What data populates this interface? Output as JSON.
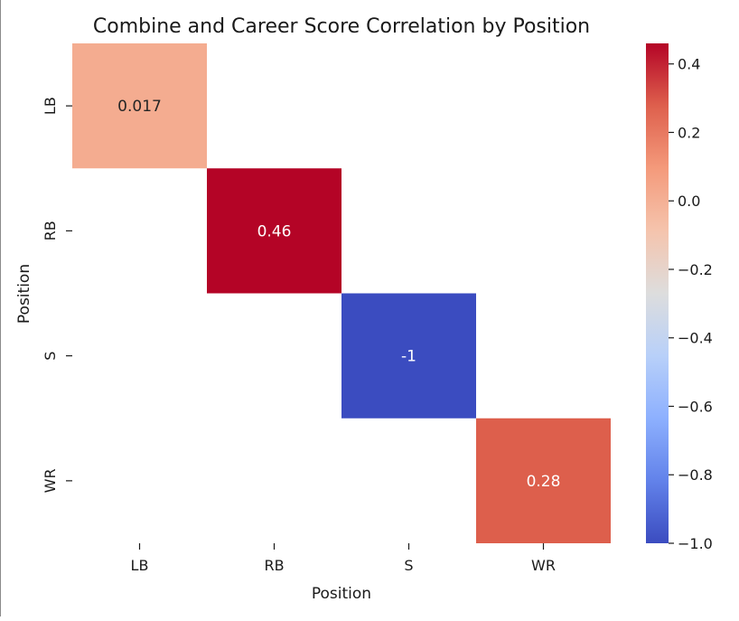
{
  "chart_data": {
    "type": "heatmap",
    "title": "Combine and Career Score Correlation by Position",
    "xlabel": "Position",
    "ylabel": "Position",
    "x_categories": [
      "LB",
      "RB",
      "S",
      "WR"
    ],
    "y_categories": [
      "LB",
      "RB",
      "S",
      "WR"
    ],
    "cells": [
      {
        "row": "LB",
        "col": "LB",
        "value": 0.017,
        "label": "0.017"
      },
      {
        "row": "RB",
        "col": "RB",
        "value": 0.46,
        "label": "0.46"
      },
      {
        "row": "S",
        "col": "S",
        "value": -1,
        "label": "-1"
      },
      {
        "row": "WR",
        "col": "WR",
        "value": 0.28,
        "label": "0.28"
      }
    ],
    "colormap": "coolwarm",
    "color_range": [
      -1.0,
      0.46
    ],
    "colorbar_ticks": [
      0.4,
      0.2,
      0.0,
      -0.2,
      -0.4,
      -0.6,
      -0.8,
      -1.0
    ],
    "colorbar_tick_labels": [
      "0.4",
      "0.2",
      "0.0",
      "−0.2",
      "−0.4",
      "−0.6",
      "−0.8",
      "−1.0"
    ],
    "empty_cells": "masked (blank)"
  }
}
